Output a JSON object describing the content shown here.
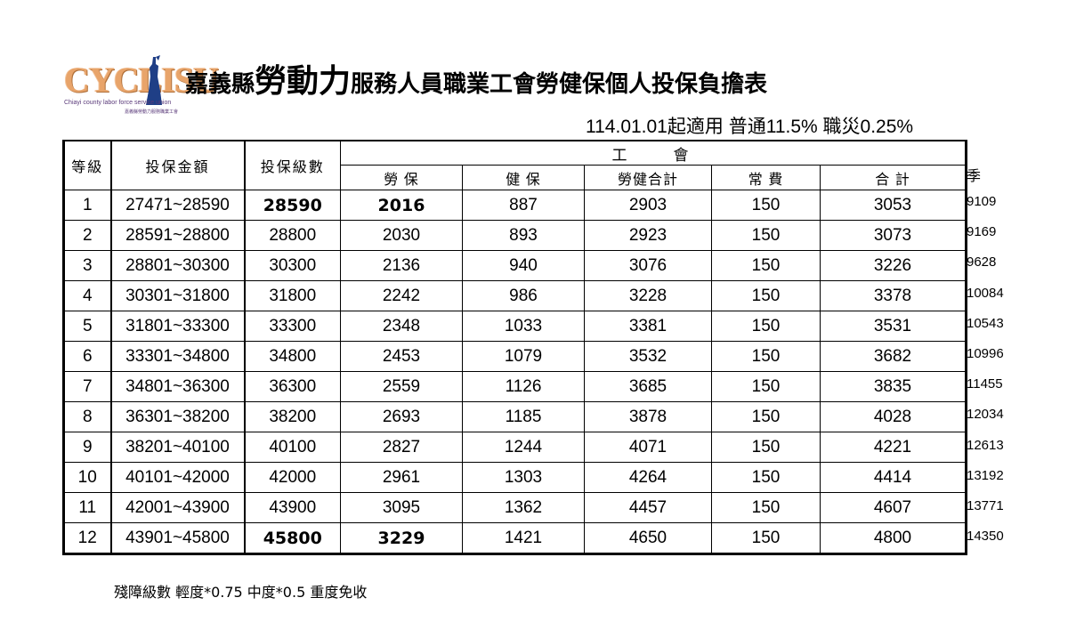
{
  "logo": {
    "text": "CYCLISU",
    "line1": "Chiayi county labor force service union",
    "line2": "嘉義縣勞動力服務職業工會"
  },
  "title": {
    "part1": "嘉義縣",
    "part2": "勞動力",
    "part3": "服務人員職業工會勞健保個人投保負擔表"
  },
  "subtitle": "114.01.01起適用  普通11.5% 職災0.25%",
  "headers": {
    "grade": "等級",
    "range": "投保金額",
    "level": "投保級數",
    "union": "工　　會",
    "labor": "勞 保",
    "health": "健 保",
    "total_lh": "勞健合計",
    "fee": "常 費",
    "sum": "合 計",
    "season": "季"
  },
  "rows": [
    {
      "grade": "1",
      "range": "27471~28590",
      "level": "28590",
      "labor": "2016",
      "health": "887",
      "total_lh": "2903",
      "fee": "150",
      "sum": "3053",
      "season": "9109"
    },
    {
      "grade": "2",
      "range": "28591~28800",
      "level": "28800",
      "labor": "2030",
      "health": "893",
      "total_lh": "2923",
      "fee": "150",
      "sum": "3073",
      "season": "9169"
    },
    {
      "grade": "3",
      "range": "28801~30300",
      "level": "30300",
      "labor": "2136",
      "health": "940",
      "total_lh": "3076",
      "fee": "150",
      "sum": "3226",
      "season": "9628"
    },
    {
      "grade": "4",
      "range": "30301~31800",
      "level": "31800",
      "labor": "2242",
      "health": "986",
      "total_lh": "3228",
      "fee": "150",
      "sum": "3378",
      "season": "10084"
    },
    {
      "grade": "5",
      "range": "31801~33300",
      "level": "33300",
      "labor": "2348",
      "health": "1033",
      "total_lh": "3381",
      "fee": "150",
      "sum": "3531",
      "season": "10543"
    },
    {
      "grade": "6",
      "range": "33301~34800",
      "level": "34800",
      "labor": "2453",
      "health": "1079",
      "total_lh": "3532",
      "fee": "150",
      "sum": "3682",
      "season": "10996"
    },
    {
      "grade": "7",
      "range": "34801~36300",
      "level": "36300",
      "labor": "2559",
      "health": "1126",
      "total_lh": "3685",
      "fee": "150",
      "sum": "3835",
      "season": "11455"
    },
    {
      "grade": "8",
      "range": "36301~38200",
      "level": "38200",
      "labor": "2693",
      "health": "1185",
      "total_lh": "3878",
      "fee": "150",
      "sum": "4028",
      "season": "12034"
    },
    {
      "grade": "9",
      "range": "38201~40100",
      "level": "40100",
      "labor": "2827",
      "health": "1244",
      "total_lh": "4071",
      "fee": "150",
      "sum": "4221",
      "season": "12613"
    },
    {
      "grade": "10",
      "range": "40101~42000",
      "level": "42000",
      "labor": "2961",
      "health": "1303",
      "total_lh": "4264",
      "fee": "150",
      "sum": "4414",
      "season": "13192"
    },
    {
      "grade": "11",
      "range": "42001~43900",
      "level": "43900",
      "labor": "3095",
      "health": "1362",
      "total_lh": "4457",
      "fee": "150",
      "sum": "4607",
      "season": "13771"
    },
    {
      "grade": "12",
      "range": "43901~45800",
      "level": "45800",
      "labor": "3229",
      "health": "1421",
      "total_lh": "4650",
      "fee": "150",
      "sum": "4800",
      "season": "14350"
    }
  ],
  "note": "殘障級數 輕度*0.75 中度*0.5 重度免收",
  "colors": {
    "logo_orange": "#e8a46a",
    "logo_purple": "#5a3a7a"
  },
  "icons": {
    "logo_figure": "statue-figure-icon"
  }
}
